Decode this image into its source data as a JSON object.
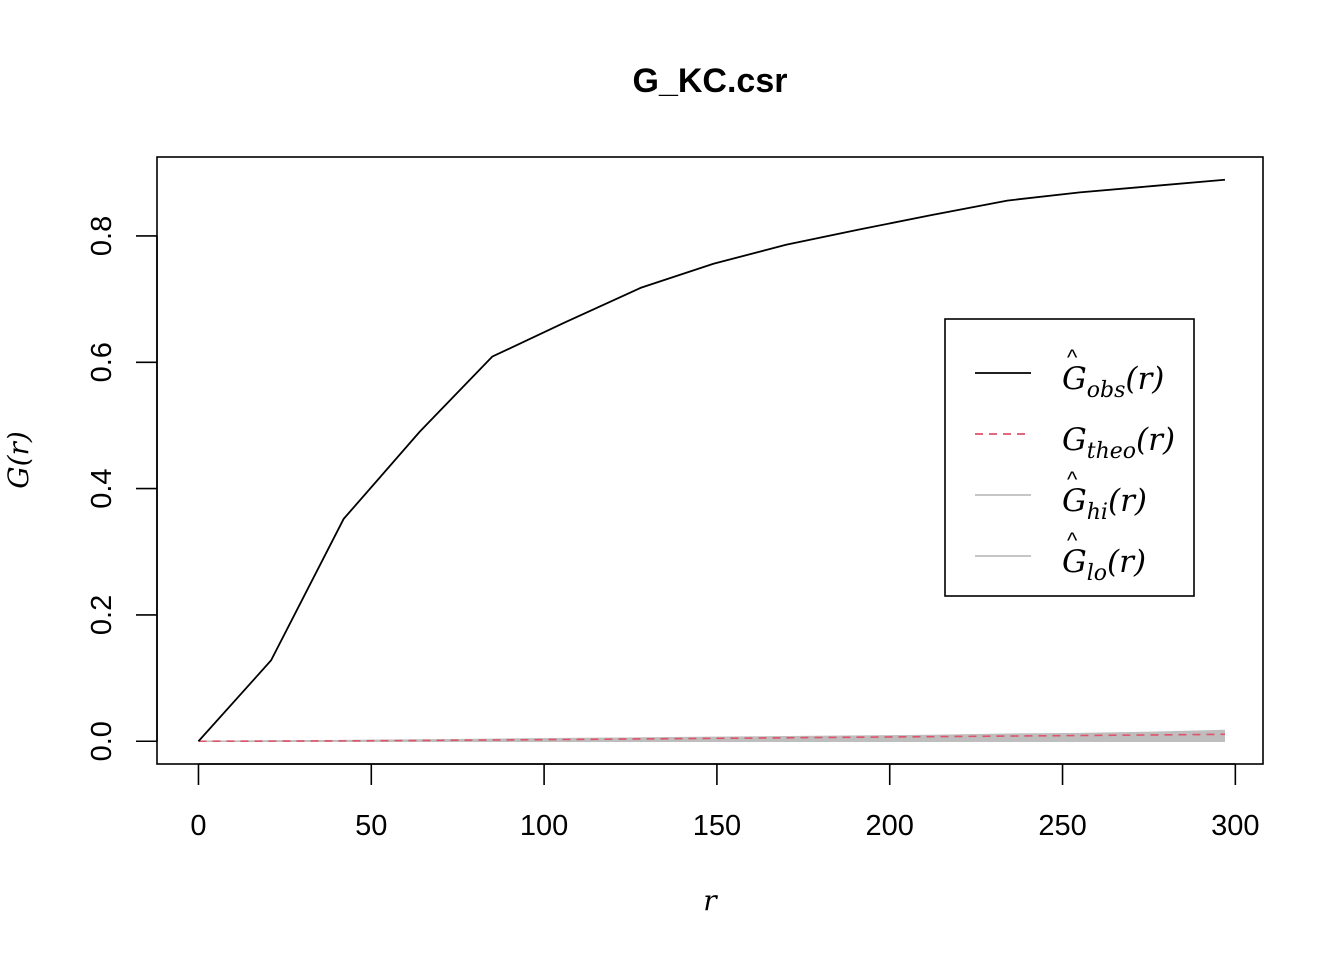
{
  "chart_data": {
    "type": "line",
    "title": "G_KC.csr",
    "xlabel": "r",
    "ylabel": "G(r)",
    "xlim": [
      -12,
      308
    ],
    "ylim": [
      -0.036,
      0.925
    ],
    "x_ticks": [
      0,
      50,
      100,
      150,
      200,
      250,
      300
    ],
    "x_tick_labels": [
      "0",
      "50",
      "100",
      "150",
      "200",
      "250",
      "300"
    ],
    "y_ticks": [
      0.0,
      0.2,
      0.4,
      0.6,
      0.8
    ],
    "y_tick_labels": [
      "0.0",
      "0.2",
      "0.4",
      "0.6",
      "0.8"
    ],
    "grid": false,
    "legend_position": "right",
    "envelope": {
      "x": [
        0,
        21,
        42,
        64,
        85,
        106,
        128,
        149,
        170,
        191,
        212,
        234,
        255,
        276,
        297
      ],
      "hi": [
        0,
        0.0005,
        0.001,
        0.002,
        0.003,
        0.004,
        0.005,
        0.006,
        0.007,
        0.008,
        0.009,
        0.011,
        0.012,
        0.014,
        0.017
      ],
      "lo": [
        0,
        0,
        0,
        0,
        0,
        0,
        0,
        0,
        0,
        0,
        0,
        0,
        0,
        0,
        0
      ],
      "color": "#bebebe"
    },
    "series": [
      {
        "name": "obs",
        "color": "#000000",
        "dash": "solid",
        "x": [
          0,
          21,
          42,
          64,
          85,
          106,
          128,
          149,
          170,
          191,
          212,
          234,
          255,
          276,
          297
        ],
        "y": [
          0,
          0.128,
          0.352,
          0.49,
          0.609,
          0.663,
          0.718,
          0.756,
          0.786,
          0.81,
          0.833,
          0.856,
          0.869,
          0.879,
          0.889
        ]
      },
      {
        "name": "theo",
        "color": "#df536b",
        "dash": "dashed",
        "x": [
          0,
          21,
          42,
          64,
          85,
          106,
          128,
          149,
          170,
          191,
          212,
          234,
          255,
          276,
          297
        ],
        "y": [
          0,
          0.0002,
          0.0006,
          0.0012,
          0.002,
          0.0028,
          0.0037,
          0.0046,
          0.0055,
          0.0064,
          0.0073,
          0.0082,
          0.0091,
          0.01,
          0.011
        ]
      },
      {
        "name": "hi",
        "color": "#bebebe",
        "dash": "solid",
        "x": [
          0,
          21,
          42,
          64,
          85,
          106,
          128,
          149,
          170,
          191,
          212,
          234,
          255,
          276,
          297
        ],
        "y": [
          0,
          0.0005,
          0.001,
          0.002,
          0.003,
          0.004,
          0.005,
          0.006,
          0.007,
          0.008,
          0.009,
          0.011,
          0.012,
          0.014,
          0.017
        ]
      },
      {
        "name": "lo",
        "color": "#bebebe",
        "dash": "solid",
        "x": [
          0,
          21,
          42,
          64,
          85,
          106,
          128,
          149,
          170,
          191,
          212,
          234,
          255,
          276,
          297
        ],
        "y": [
          0,
          0,
          0,
          0,
          0,
          0,
          0,
          0,
          0,
          0,
          0,
          0,
          0,
          0,
          0
        ]
      }
    ],
    "legend": [
      {
        "symbol": "G",
        "hat": true,
        "subscript": "obs",
        "arg": "r",
        "color": "#000000",
        "dash": "solid"
      },
      {
        "symbol": "G",
        "hat": false,
        "subscript": "theo",
        "arg": "r",
        "color": "#df536b",
        "dash": "dashed"
      },
      {
        "symbol": "G",
        "hat": true,
        "subscript": "hi",
        "arg": "r",
        "color": "#bebebe",
        "dash": "solid"
      },
      {
        "symbol": "G",
        "hat": true,
        "subscript": "lo",
        "arg": "r",
        "color": "#bebebe",
        "dash": "solid"
      }
    ]
  }
}
